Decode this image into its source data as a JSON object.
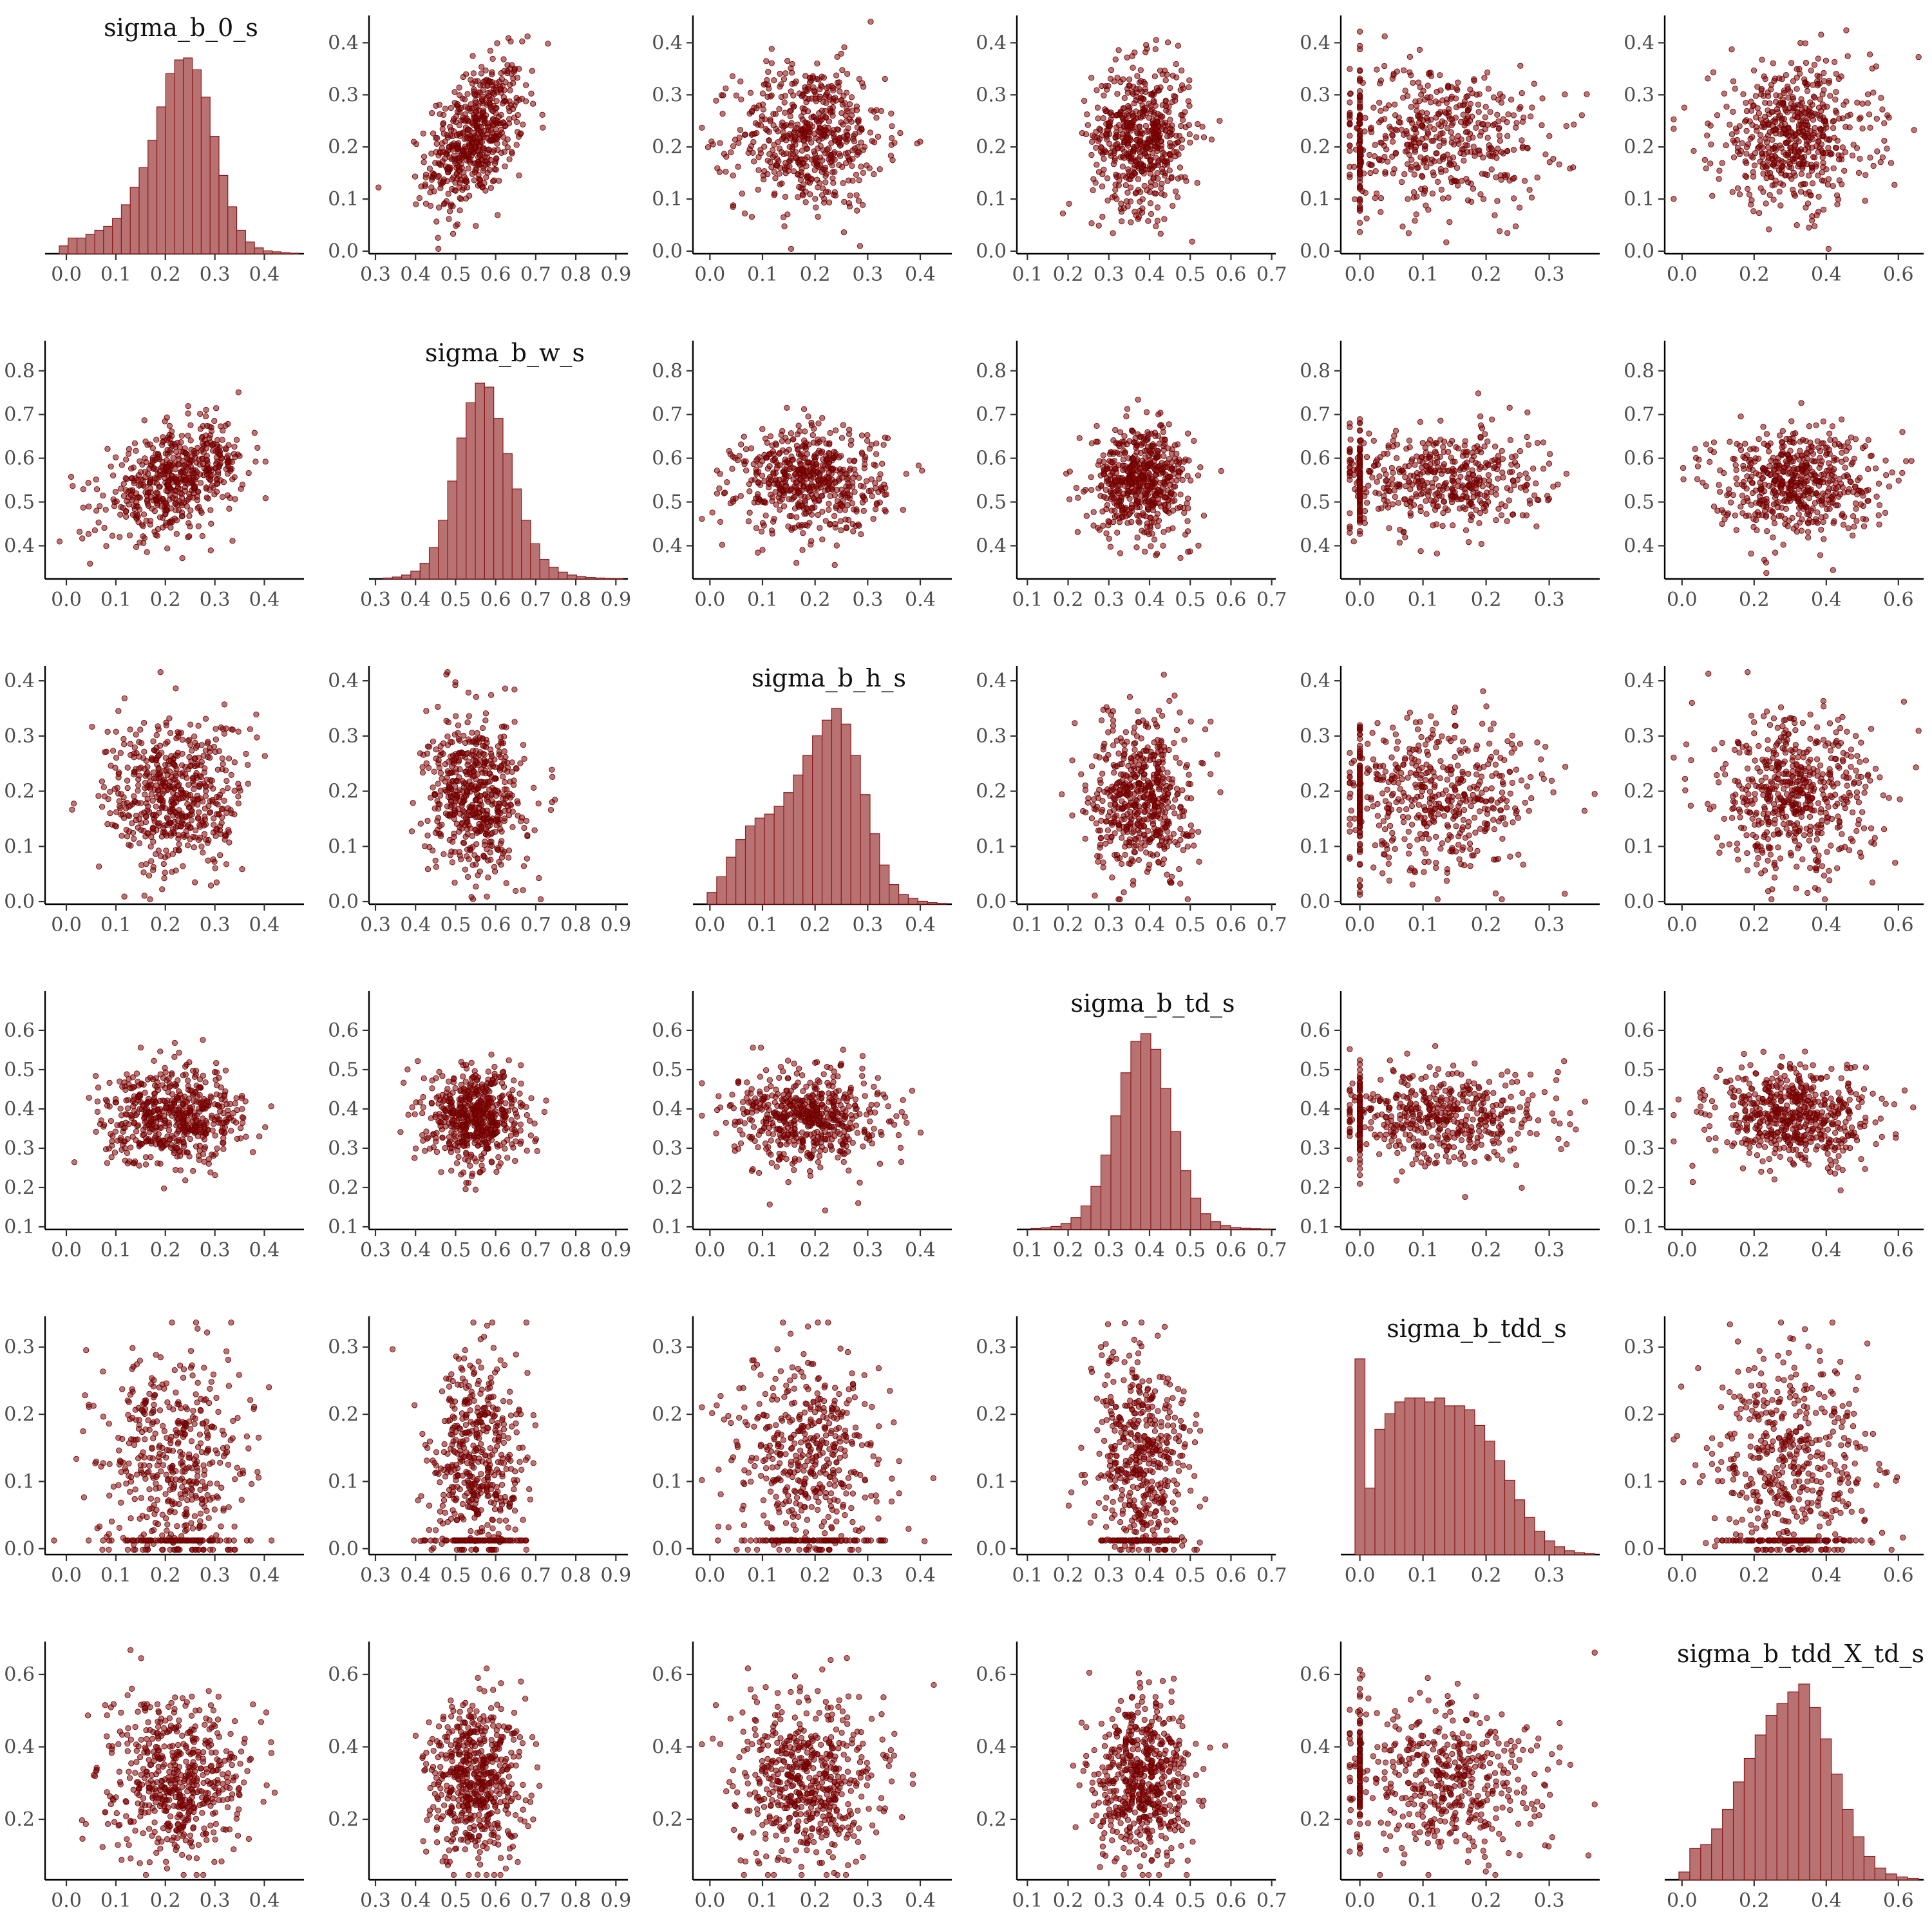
{
  "chart_data": {
    "type": "scatter",
    "layout": "pairs-matrix-6x6",
    "diagonal": "histogram",
    "off_diagonal": "scatter",
    "colors": {
      "fill": "#8b0000",
      "hist_fill": "#b87272",
      "hist_stroke": "#8b1a1a"
    },
    "variables": [
      {
        "name": "sigma_b_0_s",
        "xrange": [
          -0.03,
          0.48
        ],
        "yrange": [
          0.0,
          0.445
        ],
        "xticks": [
          [
            "0.0",
            0.0
          ],
          [
            "0.1",
            0.1
          ],
          [
            "0.2",
            0.2
          ],
          [
            "0.3",
            0.3
          ],
          [
            "0.4",
            0.4
          ]
        ],
        "yticks": [
          [
            "0.0",
            0.0
          ],
          [
            "0.1",
            0.1
          ],
          [
            "0.2",
            0.2
          ],
          [
            "0.3",
            0.3
          ],
          [
            "0.4",
            0.4
          ]
        ],
        "hist": [
          0.04,
          0.08,
          0.08,
          0.1,
          0.12,
          0.14,
          0.18,
          0.25,
          0.34,
          0.44,
          0.58,
          0.75,
          0.92,
          0.99,
          1.0,
          0.94,
          0.8,
          0.6,
          0.4,
          0.24,
          0.12,
          0.06,
          0.03,
          0.015,
          0.01,
          0.005,
          0.003
        ]
      },
      {
        "name": "sigma_b_w_s",
        "xrange": [
          0.3,
          0.93
        ],
        "yrange": [
          0.33,
          0.86
        ],
        "xticks": [
          [
            "0.3",
            0.3
          ],
          [
            "0.4",
            0.4
          ],
          [
            "0.5",
            0.5
          ],
          [
            "0.6",
            0.6
          ],
          [
            "0.7",
            0.7
          ],
          [
            "0.8",
            0.8
          ],
          [
            "0.9",
            0.9
          ]
        ],
        "yticks": [
          [
            "0.4",
            0.4
          ],
          [
            "0.5",
            0.5
          ],
          [
            "0.6",
            0.6
          ],
          [
            "0.7",
            0.7
          ],
          [
            "0.8",
            0.8
          ]
        ],
        "hist": [
          0.005,
          0.01,
          0.02,
          0.04,
          0.08,
          0.16,
          0.3,
          0.5,
          0.72,
          0.9,
          1.0,
          0.98,
          0.82,
          0.64,
          0.46,
          0.3,
          0.18,
          0.1,
          0.06,
          0.035,
          0.02,
          0.012,
          0.008,
          0.005,
          0.003,
          0.002
        ]
      },
      {
        "name": "sigma_b_h_s",
        "xrange": [
          -0.02,
          0.46
        ],
        "yrange": [
          0.0,
          0.42
        ],
        "xticks": [
          [
            "0.0",
            0.0
          ],
          [
            "0.1",
            0.1
          ],
          [
            "0.2",
            0.2
          ],
          [
            "0.3",
            0.3
          ],
          [
            "0.4",
            0.4
          ]
        ],
        "yticks": [
          [
            "0.0",
            0.0
          ],
          [
            "0.1",
            0.1
          ],
          [
            "0.2",
            0.2
          ],
          [
            "0.3",
            0.3
          ],
          [
            "0.4",
            0.4
          ]
        ],
        "hist": [
          0.06,
          0.14,
          0.24,
          0.33,
          0.4,
          0.44,
          0.46,
          0.5,
          0.57,
          0.66,
          0.76,
          0.86,
          0.94,
          1.0,
          0.92,
          0.76,
          0.56,
          0.36,
          0.2,
          0.1,
          0.05,
          0.03,
          0.015,
          0.008,
          0.004
        ]
      },
      {
        "name": "sigma_b_td_s",
        "xrange": [
          0.09,
          0.71
        ],
        "yrange": [
          0.1,
          0.69
        ],
        "xticks": [
          [
            "0.1",
            0.1
          ],
          [
            "0.2",
            0.2
          ],
          [
            "0.3",
            0.3
          ],
          [
            "0.4",
            0.4
          ],
          [
            "0.5",
            0.5
          ],
          [
            "0.6",
            0.6
          ],
          [
            "0.7",
            0.7
          ]
        ],
        "yticks": [
          [
            "0.1",
            0.1
          ],
          [
            "0.2",
            0.2
          ],
          [
            "0.3",
            0.3
          ],
          [
            "0.4",
            0.4
          ],
          [
            "0.5",
            0.5
          ],
          [
            "0.6",
            0.6
          ]
        ],
        "hist": [
          0.005,
          0.008,
          0.015,
          0.03,
          0.06,
          0.12,
          0.22,
          0.38,
          0.58,
          0.8,
          0.96,
          1.0,
          0.92,
          0.72,
          0.5,
          0.3,
          0.16,
          0.08,
          0.04,
          0.02,
          0.01,
          0.006,
          0.004,
          0.002
        ]
      },
      {
        "name": "sigma_b_tdd_s",
        "xrange": [
          -0.02,
          0.38
        ],
        "yrange": [
          -0.005,
          0.34
        ],
        "xticks": [
          [
            "0.0",
            0.0
          ],
          [
            "0.1",
            0.1
          ],
          [
            "0.2",
            0.2
          ],
          [
            "0.3",
            0.3
          ]
        ],
        "yticks": [
          [
            "0.0",
            0.0
          ],
          [
            "0.1",
            0.1
          ],
          [
            "0.2",
            0.2
          ],
          [
            "0.3",
            0.3
          ]
        ],
        "hist": [
          1.0,
          0.34,
          0.64,
          0.72,
          0.78,
          0.8,
          0.8,
          0.78,
          0.8,
          0.76,
          0.76,
          0.74,
          0.66,
          0.58,
          0.48,
          0.38,
          0.28,
          0.19,
          0.12,
          0.07,
          0.04,
          0.02,
          0.01,
          0.005
        ]
      },
      {
        "name": "sigma_b_tdd_X_td_s",
        "xrange": [
          -0.03,
          0.67
        ],
        "yrange": [
          0.04,
          0.68
        ],
        "xticks": [
          [
            "0.0",
            0.0
          ],
          [
            "0.2",
            0.2
          ],
          [
            "0.4",
            0.4
          ],
          [
            "0.6",
            0.6
          ]
        ],
        "yticks": [
          [
            "0.2",
            0.2
          ],
          [
            "0.4",
            0.4
          ],
          [
            "0.6",
            0.6
          ]
        ],
        "hist": [
          0.04,
          0.16,
          0.18,
          0.26,
          0.36,
          0.5,
          0.62,
          0.74,
          0.84,
          0.9,
          0.96,
          1.0,
          0.88,
          0.72,
          0.54,
          0.36,
          0.22,
          0.12,
          0.06,
          0.03,
          0.015,
          0.008
        ]
      }
    ],
    "scatter_centers": {
      "means": [
        0.22,
        0.55,
        0.19,
        0.38,
        0.13,
        0.31
      ],
      "sds": [
        0.07,
        0.06,
        0.07,
        0.06,
        0.08,
        0.11
      ]
    }
  }
}
